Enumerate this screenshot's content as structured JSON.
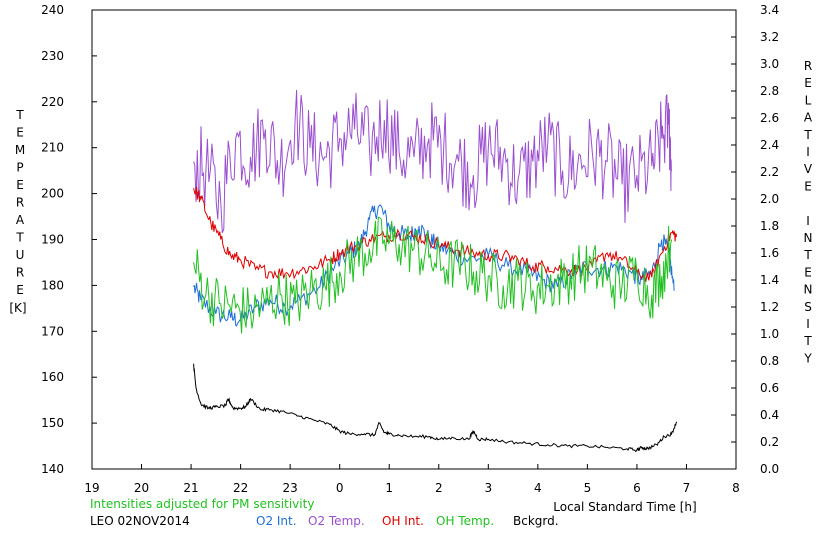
{
  "chart_data": {
    "type": "line",
    "left_axis_title": "TEMPERATURE",
    "left_axis_unit": "[K]",
    "right_axis_title": "RELATIVE INTENSITY",
    "xlabel": "Local Standard Time [h]",
    "x_tick_labels": [
      "19",
      "20",
      "21",
      "22",
      "23",
      "0",
      "1",
      "2",
      "3",
      "4",
      "5",
      "6",
      "7",
      "8"
    ],
    "y_left_ticks": [
      240,
      230,
      220,
      210,
      200,
      190,
      180,
      170,
      160,
      150,
      140
    ],
    "y_right_ticks": [
      "3.4",
      "3.2",
      "3.0",
      "2.8",
      "2.6",
      "2.4",
      "2.2",
      "2.0",
      "1.8",
      "1.6",
      "1.4",
      "1.2",
      "1.0",
      "0.8",
      "0.6",
      "0.4",
      "0.2",
      "0.0"
    ],
    "xlim": [
      19,
      32
    ],
    "ylim_left": [
      140,
      240
    ],
    "ylim_right": [
      0,
      3.4
    ],
    "grid": false,
    "series": [
      {
        "name": "O2 Int.",
        "color": "#1f6fd6",
        "axis": "right",
        "x": [
          21.05,
          21.2,
          21.5,
          21.8,
          22.0,
          22.3,
          22.6,
          22.9,
          23.2,
          23.6,
          23.9,
          24.2,
          24.4,
          24.6,
          24.8,
          25.0,
          25.2,
          25.4,
          25.6,
          25.8,
          26.0,
          26.3,
          26.6,
          27.0,
          27.4,
          27.8,
          28.1,
          28.4,
          28.7,
          29.0,
          29.3,
          29.6,
          29.9,
          30.1,
          30.3,
          30.5,
          30.65,
          30.75
        ],
        "y": [
          1.35,
          1.25,
          1.15,
          1.12,
          1.1,
          1.2,
          1.25,
          1.2,
          1.25,
          1.35,
          1.5,
          1.6,
          1.65,
          1.85,
          1.95,
          1.8,
          1.75,
          1.72,
          1.8,
          1.7,
          1.65,
          1.6,
          1.55,
          1.58,
          1.5,
          1.45,
          1.4,
          1.35,
          1.45,
          1.5,
          1.48,
          1.5,
          1.45,
          1.4,
          1.45,
          1.7,
          1.6,
          1.32
        ]
      },
      {
        "name": "O2 Temp.",
        "color": "#9a4fd0",
        "axis": "left",
        "x": [
          21.05,
          21.3,
          21.6,
          21.9,
          22.2,
          22.5,
          22.8,
          23.1,
          23.4,
          23.7,
          24.0,
          24.3,
          24.6,
          24.9,
          25.2,
          25.5,
          25.8,
          26.1,
          26.4,
          26.7,
          27.0,
          27.3,
          27.6,
          27.9,
          28.2,
          28.5,
          28.8,
          29.1,
          29.4,
          29.7,
          30.0,
          30.3,
          30.5,
          30.65,
          30.7
        ],
        "y": [
          207,
          205,
          198,
          212,
          208,
          214,
          206,
          216,
          210,
          208,
          212,
          214,
          210,
          216,
          209,
          208,
          212,
          210,
          207,
          204,
          210,
          208,
          203,
          207,
          211,
          205,
          206,
          209,
          207,
          202,
          204,
          206,
          212,
          215,
          205
        ]
      },
      {
        "name": "OH Int.",
        "color": "#e00000",
        "axis": "right",
        "x": [
          21.05,
          21.2,
          21.4,
          21.6,
          21.8,
          22.0,
          22.3,
          22.6,
          22.9,
          23.2,
          23.5,
          23.8,
          24.0,
          24.3,
          24.6,
          24.9,
          25.2,
          25.5,
          25.8,
          26.1,
          26.4,
          26.7,
          27.0,
          27.3,
          27.6,
          27.9,
          28.2,
          28.5,
          28.8,
          29.1,
          29.4,
          29.7,
          30.0,
          30.3,
          30.5,
          30.7,
          30.8
        ],
        "y": [
          2.08,
          2.0,
          1.82,
          1.7,
          1.58,
          1.55,
          1.48,
          1.46,
          1.45,
          1.47,
          1.5,
          1.55,
          1.6,
          1.65,
          1.7,
          1.72,
          1.75,
          1.72,
          1.7,
          1.65,
          1.62,
          1.6,
          1.58,
          1.58,
          1.55,
          1.5,
          1.5,
          1.48,
          1.47,
          1.5,
          1.6,
          1.55,
          1.45,
          1.42,
          1.6,
          1.75,
          1.72
        ]
      },
      {
        "name": "OH Temp.",
        "color": "#22c022",
        "axis": "left",
        "x": [
          21.05,
          21.3,
          21.6,
          21.9,
          22.2,
          22.5,
          22.8,
          23.1,
          23.4,
          23.7,
          24.0,
          24.3,
          24.6,
          24.9,
          25.2,
          25.5,
          25.8,
          26.1,
          26.4,
          26.7,
          27.0,
          27.3,
          27.6,
          27.9,
          28.2,
          28.5,
          28.8,
          29.1,
          29.4,
          29.7,
          30.0,
          30.3,
          30.5,
          30.7
        ],
        "y": [
          185,
          178,
          176,
          175,
          174,
          176,
          178,
          176,
          179,
          180,
          183,
          186,
          188,
          190,
          189,
          188,
          186,
          184,
          185,
          183,
          182,
          180,
          181,
          179,
          180,
          181,
          183,
          184,
          181,
          180,
          183,
          178,
          182,
          190
        ]
      },
      {
        "name": "Bckgrd.",
        "color": "#000000",
        "axis": "right",
        "x": [
          21.05,
          21.1,
          21.2,
          21.35,
          21.5,
          21.7,
          21.75,
          21.85,
          22.0,
          22.1,
          22.2,
          22.4,
          22.6,
          22.9,
          23.2,
          23.5,
          23.8,
          24.0,
          24.2,
          24.5,
          24.7,
          24.8,
          24.9,
          25.0,
          25.2,
          25.5,
          25.8,
          26.0,
          26.3,
          26.6,
          26.7,
          26.8,
          27.0,
          27.4,
          27.8,
          28.2,
          28.6,
          29.0,
          29.4,
          29.8,
          30.0,
          30.1,
          30.2,
          30.4,
          30.55,
          30.7,
          30.8
        ],
        "y": [
          0.78,
          0.6,
          0.48,
          0.45,
          0.46,
          0.47,
          0.52,
          0.45,
          0.45,
          0.46,
          0.52,
          0.44,
          0.44,
          0.42,
          0.39,
          0.36,
          0.33,
          0.28,
          0.26,
          0.26,
          0.25,
          0.34,
          0.27,
          0.26,
          0.25,
          0.24,
          0.24,
          0.22,
          0.23,
          0.22,
          0.28,
          0.22,
          0.22,
          0.2,
          0.19,
          0.18,
          0.17,
          0.17,
          0.16,
          0.15,
          0.14,
          0.16,
          0.15,
          0.18,
          0.24,
          0.26,
          0.35
        ]
      }
    ]
  },
  "footer": {
    "note": "Intensities adjusted for PM sensitivity",
    "note_color": "#22c022",
    "station": "LEO 02NOV2014"
  },
  "legend": [
    {
      "label": "O2 Int.",
      "color": "#1f6fd6"
    },
    {
      "label": "O2 Temp.",
      "color": "#9a4fd0"
    },
    {
      "label": "OH Int.",
      "color": "#e00000"
    },
    {
      "label": "OH Temp.",
      "color": "#22c022"
    },
    {
      "label": "Bckgrd.",
      "color": "#000000"
    }
  ]
}
